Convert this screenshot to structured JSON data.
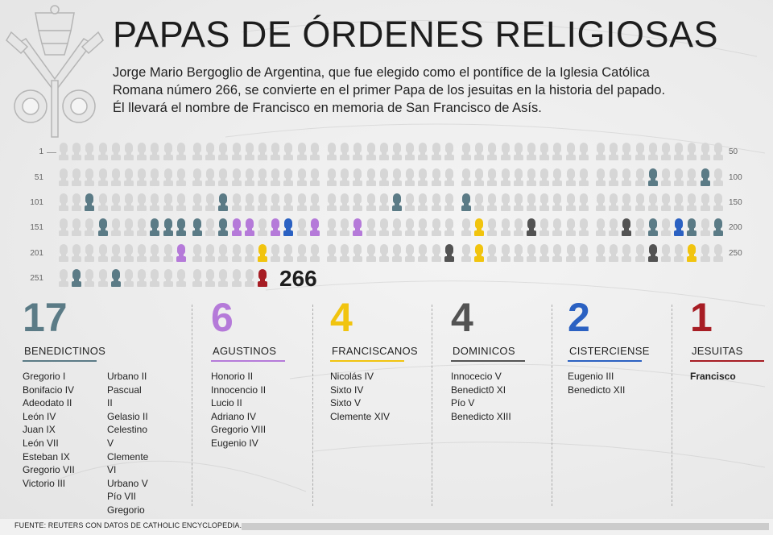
{
  "title": "PAPAS DE ÓRDENES RELIGIOSAS",
  "intro": "Jorge Mario Bergoglio de Argentina, que fue elegido como el pontífice de la Iglesia Católica Romana número 266, se convierte en el primer Papa de los jesuitas en la historia del papado. Él llevará el nombre de Francisco en memoria de San Francisco de Asís.",
  "grid": {
    "rows": [
      {
        "left": "1",
        "right": "50"
      },
      {
        "left": "51",
        "right": "100"
      },
      {
        "left": "101",
        "right": "150"
      },
      {
        "left": "151",
        "right": "200"
      },
      {
        "left": "201",
        "right": "250"
      },
      {
        "left": "251",
        "right": ""
      }
    ],
    "total_popes": 266,
    "highlight": "266",
    "colors": {
      "neutral": "#d6d6d6",
      "benedictinos": "#5b7b86",
      "agustinos": "#b57ad9",
      "franciscanos": "#f1c40f",
      "dominicos": "#535353",
      "cistercienses": "#2b61c2",
      "jesuitas": "#a71d24"
    },
    "orders_by_number": {
      "95": "benedictinos",
      "99": "benedictinos",
      "131": "benedictinos",
      "103": "benedictinos",
      "113": "benedictinos",
      "126": "benedictinos",
      "154": "benedictinos",
      "158": "benedictinos",
      "159": "benedictinos",
      "160": "benedictinos",
      "161": "benedictinos",
      "163": "benedictinos",
      "195": "benedictinos",
      "198": "benedictinos",
      "200": "benedictinos",
      "252": "benedictinos",
      "255": "benedictinos",
      "164": "agustinos",
      "165": "agustinos",
      "167": "agustinos",
      "170": "agustinos",
      "173": "agustinos",
      "210": "agustinos",
      "182": "franciscanos",
      "216": "franciscanos",
      "232": "franciscanos",
      "248": "franciscanos",
      "186": "dominicos",
      "193": "dominicos",
      "230": "dominicos",
      "245": "dominicos",
      "168": "cistercienses",
      "197": "cistercienses",
      "266": "jesuitas"
    }
  },
  "orders": [
    {
      "key": "benedictinos",
      "count": "17",
      "name": "BENEDICTINOS",
      "names_a": [
        "Gregorio I",
        "Bonifacio IV",
        "Adeodato II",
        "León IV",
        "Juan IX",
        "León VII",
        "Esteban IX",
        "Gregorio VII",
        "Victorio III"
      ],
      "names_b": [
        "Urbano II",
        "Pascual II",
        "Gelasio II",
        "Celestino V",
        "Clemente VI",
        "Urbano V",
        "Pío VII",
        "Gregorio XVI"
      ]
    },
    {
      "key": "agustinos",
      "count": "6",
      "name": "AGUSTINOS",
      "names_a": [
        "Honorio II",
        "Innocencio II",
        "Lucio II",
        "Adriano IV",
        "Gregorio VIII",
        "Eugenio IV"
      ]
    },
    {
      "key": "franciscanos",
      "count": "4",
      "name": "FRANCISCANOS",
      "names_a": [
        "Nicolás IV",
        "Sixto IV",
        "Sixto V",
        "Clemente XIV"
      ]
    },
    {
      "key": "dominicos",
      "count": "4",
      "name": "DOMINICOS",
      "names_a": [
        "Innocecio V",
        "Benedict0 XI",
        "Pío V",
        "Benedicto XIII"
      ]
    },
    {
      "key": "cistercienses",
      "count": "2",
      "name": "CISTERCIENSE",
      "names_a": [
        "Eugenio III",
        "Benedicto XII"
      ]
    },
    {
      "key": "jesuitas",
      "count": "1",
      "name": "JESUITAS",
      "names_a": [
        "Francisco"
      ]
    }
  ],
  "footer": "FUENTE: REUTERS CON DATOS DE CATHOLIC ENCYCLOPEDIA."
}
